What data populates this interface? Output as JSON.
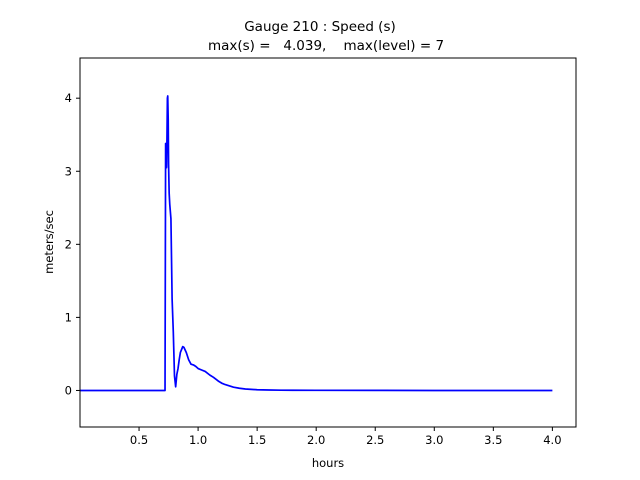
{
  "chart_data": {
    "type": "line",
    "title": "Gauge 210 : Speed (s)",
    "subtitle": "max(s) =   4.039,    max(level) = 7",
    "xlabel": "hours",
    "ylabel": "meters/sec",
    "xlim": [
      0.0,
      4.2
    ],
    "ylim": [
      -0.5,
      4.55
    ],
    "xticks": [
      0.5,
      1.0,
      1.5,
      2.0,
      2.5,
      3.0,
      3.5,
      4.0
    ],
    "xtick_labels": [
      "0.5",
      "1.0",
      "1.5",
      "2.0",
      "2.5",
      "3.0",
      "3.5",
      "4.0"
    ],
    "yticks": [
      0,
      1,
      2,
      3,
      4
    ],
    "ytick_labels": [
      "0",
      "1",
      "2",
      "3",
      "4"
    ],
    "grid": false,
    "series": [
      {
        "color": "#0000ff",
        "x": [
          0.0,
          0.1,
          0.2,
          0.3,
          0.4,
          0.5,
          0.6,
          0.7,
          0.72,
          0.725,
          0.73,
          0.733,
          0.736,
          0.74,
          0.743,
          0.747,
          0.75,
          0.755,
          0.76,
          0.77,
          0.78,
          0.79,
          0.8,
          0.81,
          0.82,
          0.83,
          0.84,
          0.85,
          0.87,
          0.88,
          0.9,
          0.92,
          0.94,
          0.96,
          0.98,
          1.0,
          1.03,
          1.06,
          1.1,
          1.13,
          1.17,
          1.2,
          1.23,
          1.27,
          1.3,
          1.35,
          1.4,
          1.45,
          1.5,
          1.6,
          1.7,
          1.8,
          2.0,
          2.5,
          3.0,
          3.5,
          4.0
        ],
        "y": [
          0.0,
          0.0,
          0.0,
          0.0,
          0.0,
          0.0,
          0.0,
          0.0,
          0.0,
          3.38,
          3.1,
          3.05,
          3.4,
          4.0,
          4.03,
          3.7,
          3.1,
          2.7,
          2.55,
          2.35,
          1.25,
          0.8,
          0.2,
          0.05,
          0.22,
          0.3,
          0.42,
          0.52,
          0.6,
          0.59,
          0.52,
          0.42,
          0.36,
          0.35,
          0.33,
          0.3,
          0.28,
          0.26,
          0.21,
          0.18,
          0.13,
          0.1,
          0.08,
          0.06,
          0.045,
          0.03,
          0.02,
          0.015,
          0.01,
          0.006,
          0.004,
          0.003,
          0.002,
          0.001,
          0.0,
          0.0,
          0.0
        ]
      }
    ]
  }
}
